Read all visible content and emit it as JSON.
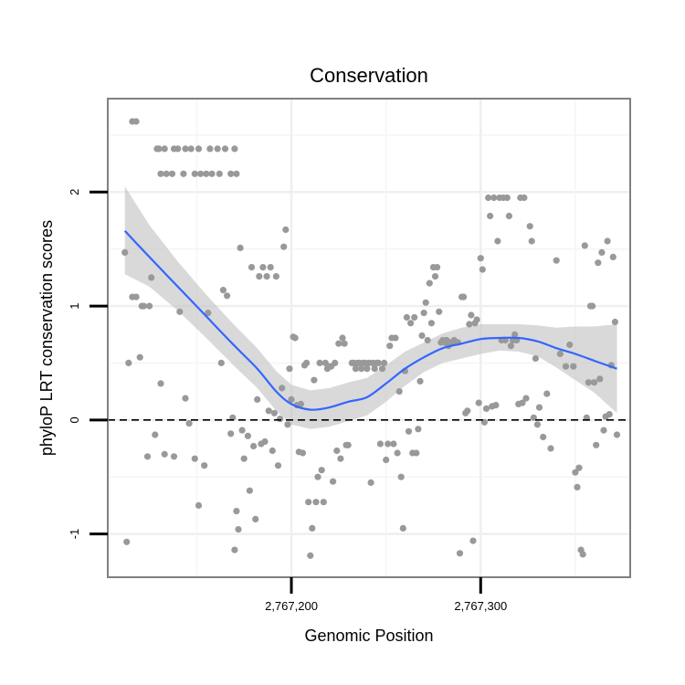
{
  "chart_data": {
    "type": "scatter",
    "title": "Conservation",
    "xlabel": "Genomic Position",
    "ylabel": "phyloP LRT conservation scores",
    "xlim": [
      2767103,
      2767379
    ],
    "ylim": [
      -1.38,
      2.82
    ],
    "x_ticks": [
      2767200,
      2767300
    ],
    "x_tick_labels": [
      "2,767,200",
      "2,767,300"
    ],
    "y_ticks": [
      -1,
      0,
      1,
      2
    ],
    "y_tick_labels": [
      "-1",
      "0",
      "1",
      "2"
    ],
    "reference_line": {
      "y": 0,
      "style": "dashed"
    },
    "grid": true,
    "points": [
      [
        2767116,
        2.62
      ],
      [
        2767118,
        2.62
      ],
      [
        2767129,
        2.38
      ],
      [
        2767130,
        2.38
      ],
      [
        2767133,
        2.38
      ],
      [
        2767138,
        2.38
      ],
      [
        2767140,
        2.38
      ],
      [
        2767144,
        2.38
      ],
      [
        2767147,
        2.38
      ],
      [
        2767151,
        2.38
      ],
      [
        2767157,
        2.38
      ],
      [
        2767161,
        2.38
      ],
      [
        2767165,
        2.38
      ],
      [
        2767170,
        2.38
      ],
      [
        2767131,
        2.16
      ],
      [
        2767134,
        2.16
      ],
      [
        2767137,
        2.16
      ],
      [
        2767143,
        2.16
      ],
      [
        2767149,
        2.16
      ],
      [
        2767152,
        2.16
      ],
      [
        2767155,
        2.16
      ],
      [
        2767158,
        2.16
      ],
      [
        2767162,
        2.16
      ],
      [
        2767168,
        2.16
      ],
      [
        2767171,
        2.16
      ],
      [
        2767112,
        1.47
      ],
      [
        2767113,
        -1.07
      ],
      [
        2767114,
        0.5
      ],
      [
        2767116,
        1.08
      ],
      [
        2767118,
        1.08
      ],
      [
        2767120,
        0.55
      ],
      [
        2767121,
        1.0
      ],
      [
        2767122,
        1.0
      ],
      [
        2767124,
        -0.32
      ],
      [
        2767125,
        1.0
      ],
      [
        2767126,
        1.25
      ],
      [
        2767128,
        -0.13
      ],
      [
        2767131,
        0.32
      ],
      [
        2767133,
        -0.3
      ],
      [
        2767138,
        -0.32
      ],
      [
        2767141,
        0.95
      ],
      [
        2767144,
        0.19
      ],
      [
        2767146,
        -0.03
      ],
      [
        2767149,
        -0.34
      ],
      [
        2767151,
        -0.75
      ],
      [
        2767154,
        -0.4
      ],
      [
        2767156,
        0.94
      ],
      [
        2767163,
        0.5
      ],
      [
        2767164,
        1.14
      ],
      [
        2767166,
        1.09
      ],
      [
        2767168,
        -0.12
      ],
      [
        2767169,
        0.02
      ],
      [
        2767170,
        -1.14
      ],
      [
        2767171,
        -0.8
      ],
      [
        2767172,
        -0.96
      ],
      [
        2767173,
        1.51
      ],
      [
        2767174,
        -0.09
      ],
      [
        2767175,
        -0.34
      ],
      [
        2767177,
        -0.14
      ],
      [
        2767178,
        -0.62
      ],
      [
        2767179,
        1.34
      ],
      [
        2767180,
        -0.23
      ],
      [
        2767181,
        -0.87
      ],
      [
        2767182,
        0.18
      ],
      [
        2767183,
        1.26
      ],
      [
        2767184,
        -0.21
      ],
      [
        2767185,
        1.34
      ],
      [
        2767186,
        -0.19
      ],
      [
        2767187,
        1.26
      ],
      [
        2767188,
        0.08
      ],
      [
        2767189,
        1.34
      ],
      [
        2767190,
        -0.27
      ],
      [
        2767191,
        0.06
      ],
      [
        2767192,
        1.26
      ],
      [
        2767193,
        -0.4
      ],
      [
        2767194,
        0.01
      ],
      [
        2767195,
        0.28
      ],
      [
        2767196,
        1.52
      ],
      [
        2767197,
        1.67
      ],
      [
        2767198,
        -0.04
      ],
      [
        2767199,
        0.45
      ],
      [
        2767200,
        0.18
      ],
      [
        2767201,
        0.73
      ],
      [
        2767202,
        0.72
      ],
      [
        2767203,
        0.13
      ],
      [
        2767204,
        -0.28
      ],
      [
        2767205,
        0.14
      ],
      [
        2767206,
        -0.29
      ],
      [
        2767207,
        0.48
      ],
      [
        2767208,
        0.5
      ],
      [
        2767209,
        -0.72
      ],
      [
        2767210,
        -1.19
      ],
      [
        2767211,
        -0.95
      ],
      [
        2767212,
        0.35
      ],
      [
        2767213,
        -0.72
      ],
      [
        2767214,
        -0.5
      ],
      [
        2767215,
        0.5
      ],
      [
        2767216,
        -0.44
      ],
      [
        2767217,
        -0.72
      ],
      [
        2767218,
        0.5
      ],
      [
        2767219,
        0.45
      ],
      [
        2767220,
        0.47
      ],
      [
        2767221,
        0.47
      ],
      [
        2767222,
        -0.54
      ],
      [
        2767223,
        0.5
      ],
      [
        2767224,
        -0.27
      ],
      [
        2767225,
        0.67
      ],
      [
        2767226,
        -0.34
      ],
      [
        2767227,
        0.72
      ],
      [
        2767228,
        0.67
      ],
      [
        2767229,
        -0.22
      ],
      [
        2767230,
        -0.22
      ],
      [
        2767232,
        0.5
      ],
      [
        2767233,
        0.5
      ],
      [
        2767234,
        0.45
      ],
      [
        2767235,
        0.5
      ],
      [
        2767236,
        0.5
      ],
      [
        2767237,
        0.45
      ],
      [
        2767238,
        0.5
      ],
      [
        2767239,
        0.5
      ],
      [
        2767240,
        0.45
      ],
      [
        2767241,
        0.5
      ],
      [
        2767242,
        -0.55
      ],
      [
        2767243,
        0.5
      ],
      [
        2767244,
        0.45
      ],
      [
        2767245,
        0.5
      ],
      [
        2767246,
        0.5
      ],
      [
        2767247,
        -0.21
      ],
      [
        2767248,
        0.45
      ],
      [
        2767249,
        0.5
      ],
      [
        2767250,
        -0.35
      ],
      [
        2767251,
        -0.21
      ],
      [
        2767252,
        0.65
      ],
      [
        2767253,
        0.72
      ],
      [
        2767254,
        -0.21
      ],
      [
        2767255,
        0.72
      ],
      [
        2767256,
        -0.29
      ],
      [
        2767257,
        0.25
      ],
      [
        2767258,
        -0.5
      ],
      [
        2767259,
        -0.95
      ],
      [
        2767260,
        0.43
      ],
      [
        2767261,
        0.9
      ],
      [
        2767262,
        -0.1
      ],
      [
        2767263,
        0.85
      ],
      [
        2767264,
        -0.29
      ],
      [
        2767265,
        0.9
      ],
      [
        2767266,
        -0.29
      ],
      [
        2767267,
        -0.08
      ],
      [
        2767268,
        0.34
      ],
      [
        2767269,
        0.74
      ],
      [
        2767270,
        0.94
      ],
      [
        2767271,
        1.03
      ],
      [
        2767272,
        0.7
      ],
      [
        2767273,
        1.2
      ],
      [
        2767274,
        0.85
      ],
      [
        2767275,
        1.34
      ],
      [
        2767276,
        1.26
      ],
      [
        2767277,
        1.34
      ],
      [
        2767278,
        0.95
      ],
      [
        2767279,
        0.68
      ],
      [
        2767280,
        0.7
      ],
      [
        2767281,
        0.68
      ],
      [
        2767282,
        0.7
      ],
      [
        2767283,
        0.65
      ],
      [
        2767284,
        0.68
      ],
      [
        2767285,
        0.68
      ],
      [
        2767286,
        0.7
      ],
      [
        2767287,
        0.68
      ],
      [
        2767288,
        0.68
      ],
      [
        2767289,
        -1.17
      ],
      [
        2767290,
        1.08
      ],
      [
        2767291,
        1.08
      ],
      [
        2767292,
        0.06
      ],
      [
        2767293,
        0.08
      ],
      [
        2767294,
        0.84
      ],
      [
        2767295,
        0.92
      ],
      [
        2767296,
        -1.06
      ],
      [
        2767297,
        0.85
      ],
      [
        2767298,
        0.88
      ],
      [
        2767299,
        0.15
      ],
      [
        2767300,
        1.42
      ],
      [
        2767301,
        1.32
      ],
      [
        2767302,
        -0.02
      ],
      [
        2767303,
        0.1
      ],
      [
        2767304,
        1.95
      ],
      [
        2767305,
        1.79
      ],
      [
        2767306,
        0.12
      ],
      [
        2767307,
        1.95
      ],
      [
        2767308,
        0.13
      ],
      [
        2767309,
        1.57
      ],
      [
        2767310,
        1.95
      ],
      [
        2767311,
        0.7
      ],
      [
        2767312,
        1.95
      ],
      [
        2767313,
        0.7
      ],
      [
        2767314,
        1.95
      ],
      [
        2767315,
        1.79
      ],
      [
        2767316,
        0.65
      ],
      [
        2767317,
        0.7
      ],
      [
        2767318,
        0.75
      ],
      [
        2767319,
        0.7
      ],
      [
        2767320,
        0.14
      ],
      [
        2767321,
        1.95
      ],
      [
        2767322,
        0.15
      ],
      [
        2767323,
        1.95
      ],
      [
        2767324,
        0.19
      ],
      [
        2767326,
        1.7
      ],
      [
        2767327,
        1.57
      ],
      [
        2767328,
        0.02
      ],
      [
        2767329,
        0.54
      ],
      [
        2767330,
        -0.04
      ],
      [
        2767331,
        0.11
      ],
      [
        2767333,
        -0.15
      ],
      [
        2767335,
        0.23
      ],
      [
        2767337,
        -0.25
      ],
      [
        2767340,
        1.4
      ],
      [
        2767342,
        0.58
      ],
      [
        2767345,
        0.47
      ],
      [
        2767347,
        0.66
      ],
      [
        2767349,
        0.47
      ],
      [
        2767350,
        -0.46
      ],
      [
        2767351,
        -0.59
      ],
      [
        2767352,
        -0.42
      ],
      [
        2767353,
        -1.14
      ],
      [
        2767354,
        -1.18
      ],
      [
        2767355,
        1.53
      ],
      [
        2767356,
        0.02
      ],
      [
        2767357,
        0.33
      ],
      [
        2767358,
        1.0
      ],
      [
        2767359,
        1.0
      ],
      [
        2767360,
        0.33
      ],
      [
        2767361,
        -0.22
      ],
      [
        2767362,
        1.38
      ],
      [
        2767363,
        0.36
      ],
      [
        2767364,
        1.47
      ],
      [
        2767365,
        -0.09
      ],
      [
        2767366,
        0.03
      ],
      [
        2767367,
        1.57
      ],
      [
        2767368,
        0.05
      ],
      [
        2767369,
        0.48
      ],
      [
        2767370,
        1.43
      ],
      [
        2767371,
        0.86
      ],
      [
        2767372,
        -0.13
      ]
    ],
    "smooth_fit": {
      "method": "loess",
      "x": [
        2767112,
        2767125,
        2767140,
        2767155,
        2767170,
        2767182,
        2767192,
        2767200,
        2767210,
        2767220,
        2767230,
        2767240,
        2767250,
        2767260,
        2767270,
        2767280,
        2767290,
        2767300,
        2767310,
        2767320,
        2767330,
        2767340,
        2767350,
        2767360,
        2767372
      ],
      "y": [
        1.66,
        1.43,
        1.17,
        0.91,
        0.65,
        0.45,
        0.25,
        0.14,
        0.09,
        0.11,
        0.16,
        0.2,
        0.32,
        0.45,
        0.55,
        0.63,
        0.67,
        0.71,
        0.72,
        0.72,
        0.69,
        0.63,
        0.58,
        0.52,
        0.45
      ],
      "ci_lower": [
        1.28,
        1.17,
        0.96,
        0.72,
        0.47,
        0.28,
        0.08,
        -0.04,
        -0.08,
        -0.06,
        -0.01,
        0.04,
        0.16,
        0.3,
        0.42,
        0.5,
        0.54,
        0.58,
        0.61,
        0.6,
        0.56,
        0.46,
        0.35,
        0.24,
        0.06
      ],
      "ci_upper": [
        2.05,
        1.71,
        1.39,
        1.1,
        0.83,
        0.63,
        0.43,
        0.31,
        0.26,
        0.28,
        0.33,
        0.37,
        0.48,
        0.6,
        0.68,
        0.76,
        0.81,
        0.84,
        0.84,
        0.84,
        0.83,
        0.81,
        0.82,
        0.82,
        0.84
      ]
    },
    "colors": {
      "points": "#999999",
      "fit_line": "#3366FF",
      "ribbon": "#bfbfbf",
      "panel_border": "#808080",
      "grid": "#efefef",
      "reference": "#000000"
    }
  }
}
